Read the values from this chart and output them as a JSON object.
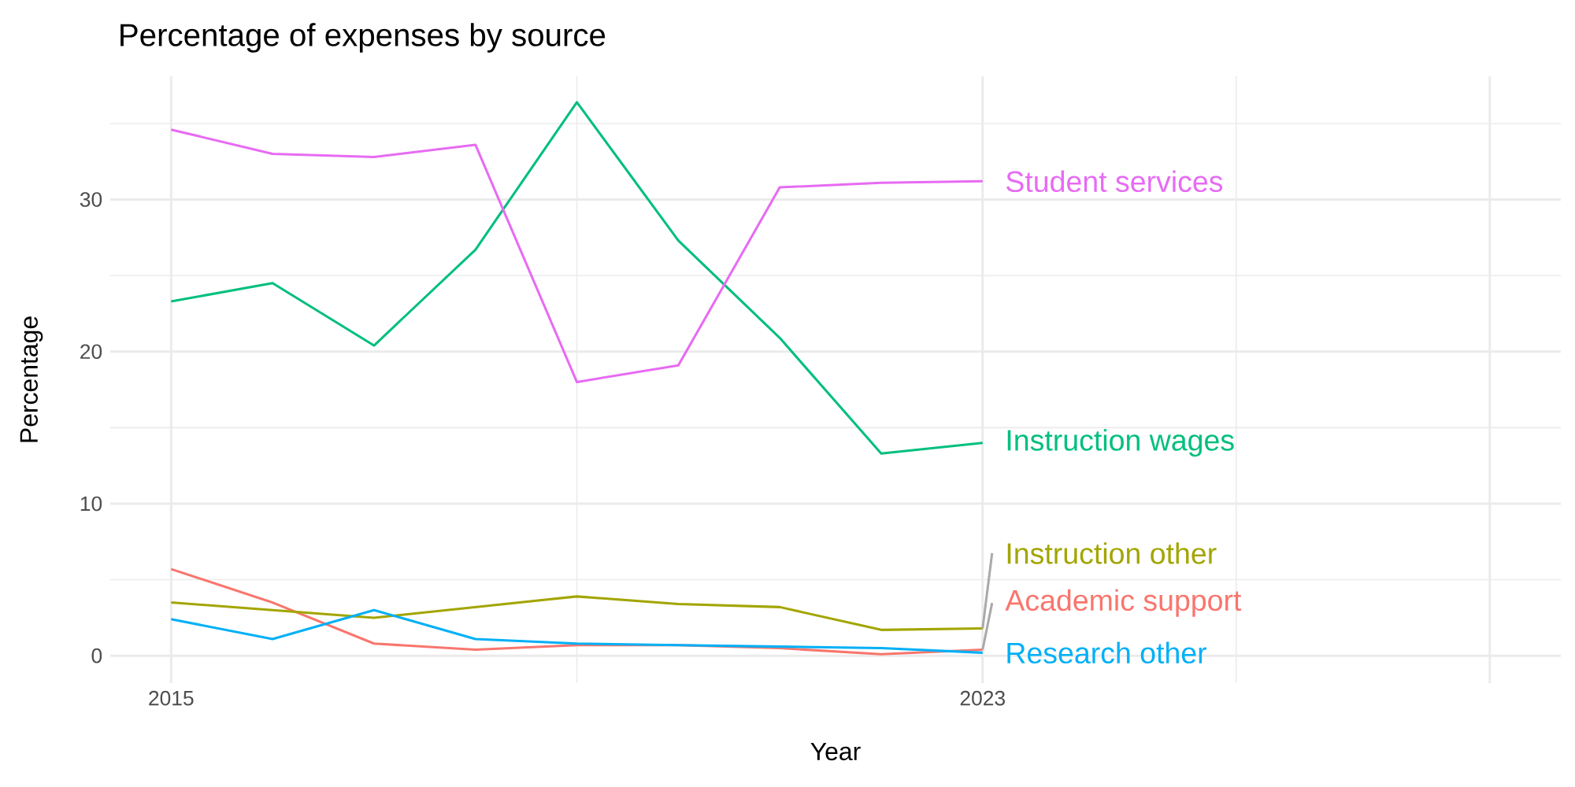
{
  "chart_data": {
    "type": "line",
    "title": "Percentage of expenses by source",
    "xlabel": "Year",
    "ylabel": "Percentage",
    "x": [
      2015,
      2016,
      2017,
      2018,
      2019,
      2020,
      2021,
      2022,
      2023
    ],
    "series": [
      {
        "name": "Academic support",
        "color": "#f8766d",
        "values": [
          5.7,
          3.5,
          0.8,
          0.4,
          0.7,
          0.7,
          0.5,
          0.1,
          0.4
        ]
      },
      {
        "name": "Instruction other",
        "color": "#a3a500",
        "values": [
          3.5,
          3.0,
          2.5,
          3.2,
          3.9,
          3.4,
          3.2,
          1.7,
          1.8
        ]
      },
      {
        "name": "Instruction wages",
        "color": "#00bf7d",
        "values": [
          23.3,
          24.5,
          20.4,
          26.7,
          36.4,
          27.3,
          20.9,
          13.3,
          14.0
        ]
      },
      {
        "name": "Research other",
        "color": "#00b0f6",
        "values": [
          2.4,
          1.1,
          3.0,
          1.1,
          0.8,
          0.7,
          0.6,
          0.5,
          0.2
        ]
      },
      {
        "name": "Student services",
        "color": "#e76bf3",
        "values": [
          34.6,
          33.0,
          32.8,
          33.6,
          18.0,
          19.1,
          30.8,
          31.1,
          31.2
        ]
      }
    ],
    "xlim": [
      2014.4,
      2028.7
    ],
    "ylim": [
      -1.8,
      38.1
    ],
    "xticks": [
      2015,
      2023,
      {
        "value": 2028,
        "label": null
      }
    ],
    "yticks": [
      0,
      10,
      20,
      30
    ],
    "grid": true,
    "legend": false,
    "marker": "none",
    "line_style": "solid"
  }
}
